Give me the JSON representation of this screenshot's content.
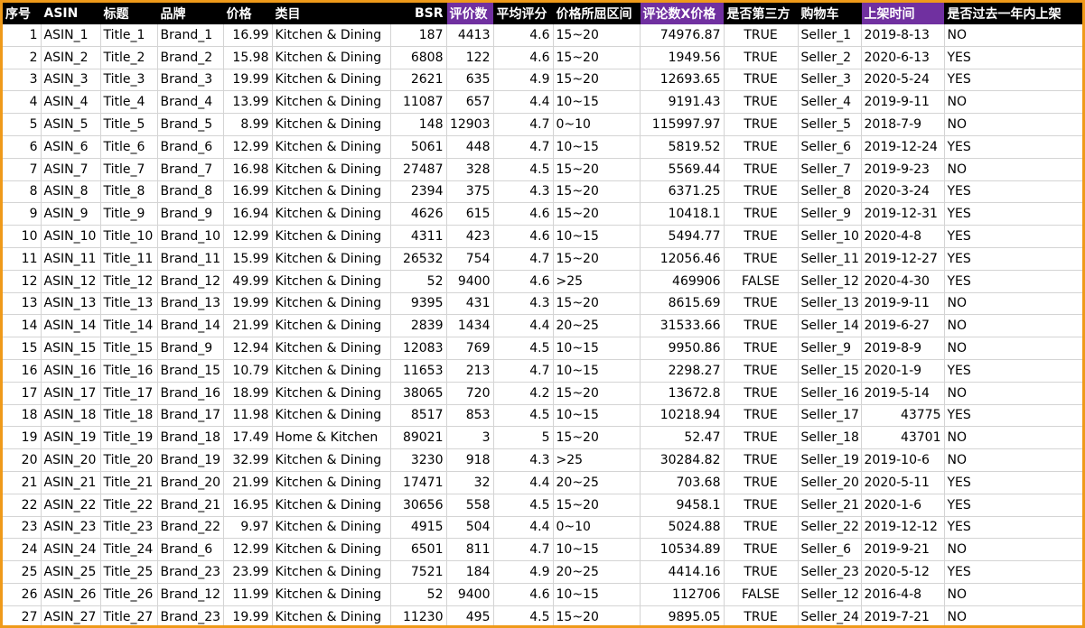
{
  "colors": {
    "header_bg": "#000000",
    "header_text": "#ffffff",
    "highlight_header": "#7030a0",
    "frame_border": "#ef9a1a"
  },
  "headers": [
    "序号",
    "ASIN",
    "标题",
    "品牌",
    "价格",
    "类目",
    "BSR",
    "评价数",
    "平均评分",
    "价格所屈区间",
    "评论数X价格",
    "是否第三方",
    "购物车",
    "上架时间",
    "是否过去一年内上架"
  ],
  "rows": [
    [
      "1",
      "ASIN_1",
      "Title_1",
      "Brand_1",
      "16.99",
      "Kitchen & Dining",
      "187",
      "4413",
      "4.6",
      "15~20",
      "74976.87",
      "TRUE",
      "Seller_1",
      "2019-8-13",
      "NO"
    ],
    [
      "2",
      "ASIN_2",
      "Title_2",
      "Brand_2",
      "15.98",
      "Kitchen & Dining",
      "6808",
      "122",
      "4.6",
      "15~20",
      "1949.56",
      "TRUE",
      "Seller_2",
      "2020-6-13",
      "YES"
    ],
    [
      "3",
      "ASIN_3",
      "Title_3",
      "Brand_3",
      "19.99",
      "Kitchen & Dining",
      "2621",
      "635",
      "4.9",
      "15~20",
      "12693.65",
      "TRUE",
      "Seller_3",
      "2020-5-24",
      "YES"
    ],
    [
      "4",
      "ASIN_4",
      "Title_4",
      "Brand_4",
      "13.99",
      "Kitchen & Dining",
      "11087",
      "657",
      "4.4",
      "10~15",
      "9191.43",
      "TRUE",
      "Seller_4",
      "2019-9-11",
      "NO"
    ],
    [
      "5",
      "ASIN_5",
      "Title_5",
      "Brand_5",
      "8.99",
      "Kitchen & Dining",
      "148",
      "12903",
      "4.7",
      "0~10",
      "115997.97",
      "TRUE",
      "Seller_5",
      "2018-7-9",
      "NO"
    ],
    [
      "6",
      "ASIN_6",
      "Title_6",
      "Brand_6",
      "12.99",
      "Kitchen & Dining",
      "5061",
      "448",
      "4.7",
      "10~15",
      "5819.52",
      "TRUE",
      "Seller_6",
      "2019-12-24",
      "YES"
    ],
    [
      "7",
      "ASIN_7",
      "Title_7",
      "Brand_7",
      "16.98",
      "Kitchen & Dining",
      "27487",
      "328",
      "4.5",
      "15~20",
      "5569.44",
      "TRUE",
      "Seller_7",
      "2019-9-23",
      "NO"
    ],
    [
      "8",
      "ASIN_8",
      "Title_8",
      "Brand_8",
      "16.99",
      "Kitchen & Dining",
      "2394",
      "375",
      "4.3",
      "15~20",
      "6371.25",
      "TRUE",
      "Seller_8",
      "2020-3-24",
      "YES"
    ],
    [
      "9",
      "ASIN_9",
      "Title_9",
      "Brand_9",
      "16.94",
      "Kitchen & Dining",
      "4626",
      "615",
      "4.6",
      "15~20",
      "10418.1",
      "TRUE",
      "Seller_9",
      "2019-12-31",
      "YES"
    ],
    [
      "10",
      "ASIN_10",
      "Title_10",
      "Brand_10",
      "12.99",
      "Kitchen & Dining",
      "4311",
      "423",
      "4.6",
      "10~15",
      "5494.77",
      "TRUE",
      "Seller_10",
      "2020-4-8",
      "YES"
    ],
    [
      "11",
      "ASIN_11",
      "Title_11",
      "Brand_11",
      "15.99",
      "Kitchen & Dining",
      "26532",
      "754",
      "4.7",
      "15~20",
      "12056.46",
      "TRUE",
      "Seller_11",
      "2019-12-27",
      "YES"
    ],
    [
      "12",
      "ASIN_12",
      "Title_12",
      "Brand_12",
      "49.99",
      "Kitchen & Dining",
      "52",
      "9400",
      "4.6",
      ">25",
      "469906",
      "FALSE",
      "Seller_12",
      "2020-4-30",
      "YES"
    ],
    [
      "13",
      "ASIN_13",
      "Title_13",
      "Brand_13",
      "19.99",
      "Kitchen & Dining",
      "9395",
      "431",
      "4.3",
      "15~20",
      "8615.69",
      "TRUE",
      "Seller_13",
      "2019-9-11",
      "NO"
    ],
    [
      "14",
      "ASIN_14",
      "Title_14",
      "Brand_14",
      "21.99",
      "Kitchen & Dining",
      "2839",
      "1434",
      "4.4",
      "20~25",
      "31533.66",
      "TRUE",
      "Seller_14",
      "2019-6-27",
      "NO"
    ],
    [
      "15",
      "ASIN_15",
      "Title_15",
      "Brand_9",
      "12.94",
      "Kitchen & Dining",
      "12083",
      "769",
      "4.5",
      "10~15",
      "9950.86",
      "TRUE",
      "Seller_9",
      "2019-8-9",
      "NO"
    ],
    [
      "16",
      "ASIN_16",
      "Title_16",
      "Brand_15",
      "10.79",
      "Kitchen & Dining",
      "11653",
      "213",
      "4.7",
      "10~15",
      "2298.27",
      "TRUE",
      "Seller_15",
      "2020-1-9",
      "YES"
    ],
    [
      "17",
      "ASIN_17",
      "Title_17",
      "Brand_16",
      "18.99",
      "Kitchen & Dining",
      "38065",
      "720",
      "4.2",
      "15~20",
      "13672.8",
      "TRUE",
      "Seller_16",
      "2019-5-14",
      "NO"
    ],
    [
      "18",
      "ASIN_18",
      "Title_18",
      "Brand_17",
      "11.98",
      "Kitchen & Dining",
      "8517",
      "853",
      "4.5",
      "10~15",
      "10218.94",
      "TRUE",
      "Seller_17",
      "43775",
      "YES"
    ],
    [
      "19",
      "ASIN_19",
      "Title_19",
      "Brand_18",
      "17.49",
      "Home & Kitchen",
      "89021",
      "3",
      "5",
      "15~20",
      "52.47",
      "TRUE",
      "Seller_18",
      "43701",
      "NO"
    ],
    [
      "20",
      "ASIN_20",
      "Title_20",
      "Brand_19",
      "32.99",
      "Kitchen & Dining",
      "3230",
      "918",
      "4.3",
      ">25",
      "30284.82",
      "TRUE",
      "Seller_19",
      "2019-10-6",
      "NO"
    ],
    [
      "21",
      "ASIN_21",
      "Title_21",
      "Brand_20",
      "21.99",
      "Kitchen & Dining",
      "17471",
      "32",
      "4.4",
      "20~25",
      "703.68",
      "TRUE",
      "Seller_20",
      "2020-5-11",
      "YES"
    ],
    [
      "22",
      "ASIN_22",
      "Title_22",
      "Brand_21",
      "16.95",
      "Kitchen & Dining",
      "30656",
      "558",
      "4.5",
      "15~20",
      "9458.1",
      "TRUE",
      "Seller_21",
      "2020-1-6",
      "YES"
    ],
    [
      "23",
      "ASIN_23",
      "Title_23",
      "Brand_22",
      "9.97",
      "Kitchen & Dining",
      "4915",
      "504",
      "4.4",
      "0~10",
      "5024.88",
      "TRUE",
      "Seller_22",
      "2019-12-12",
      "YES"
    ],
    [
      "24",
      "ASIN_24",
      "Title_24",
      "Brand_6",
      "12.99",
      "Kitchen & Dining",
      "6501",
      "811",
      "4.7",
      "10~15",
      "10534.89",
      "TRUE",
      "Seller_6",
      "2019-9-21",
      "NO"
    ],
    [
      "25",
      "ASIN_25",
      "Title_25",
      "Brand_23",
      "23.99",
      "Kitchen & Dining",
      "7521",
      "184",
      "4.9",
      "20~25",
      "4414.16",
      "TRUE",
      "Seller_23",
      "2020-5-12",
      "YES"
    ],
    [
      "26",
      "ASIN_26",
      "Title_26",
      "Brand_12",
      "11.99",
      "Kitchen & Dining",
      "52",
      "9400",
      "4.6",
      "10~15",
      "112706",
      "FALSE",
      "Seller_12",
      "2016-4-8",
      "NO"
    ],
    [
      "27",
      "ASIN_27",
      "Title_27",
      "Brand_23",
      "19.99",
      "Kitchen & Dining",
      "11230",
      "495",
      "4.5",
      "15~20",
      "9895.05",
      "TRUE",
      "Seller_24",
      "2019-7-21",
      "NO"
    ]
  ]
}
